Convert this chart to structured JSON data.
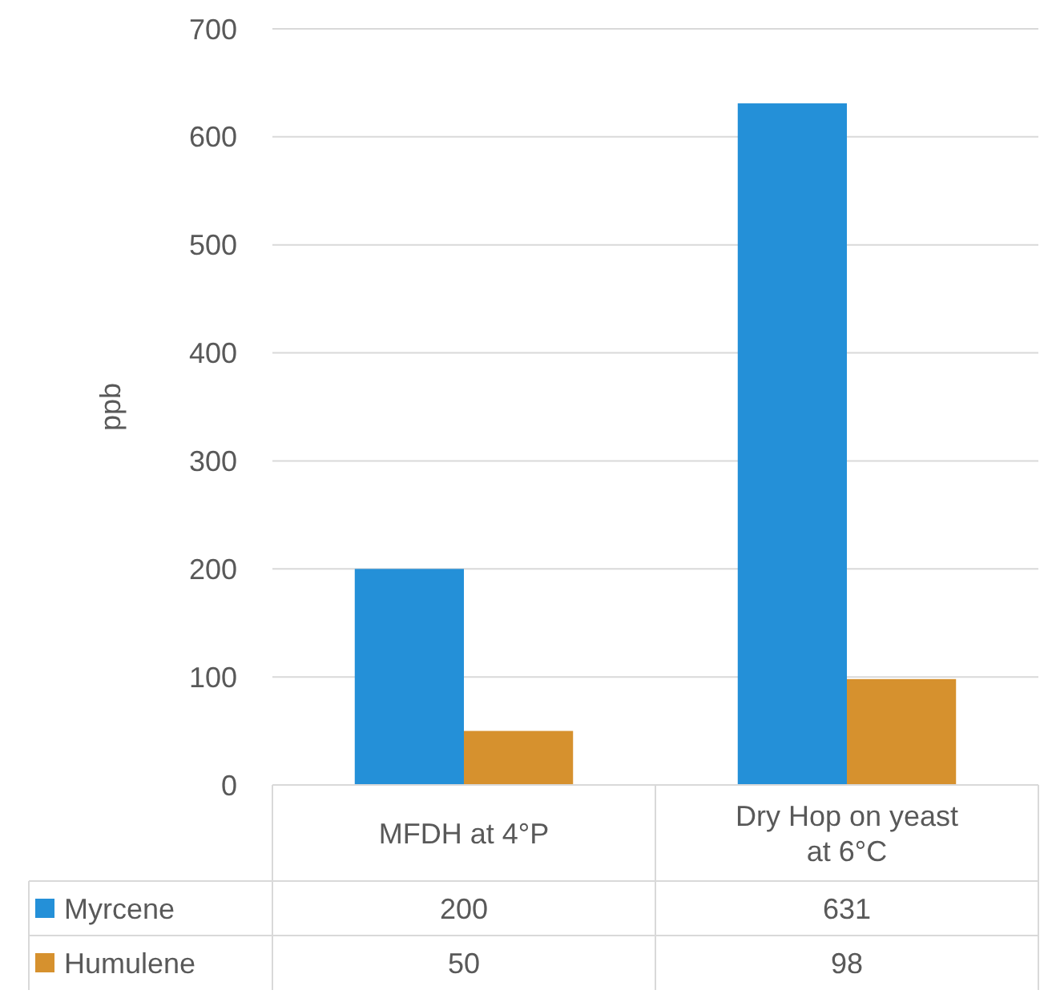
{
  "chart_data": {
    "type": "bar",
    "ylabel": "ppb",
    "categories": [
      "MFDH at 4°P",
      "Dry Hop on yeast at 6°C"
    ],
    "series": [
      {
        "name": "Myrcene",
        "color": "#2490d8",
        "values": [
          200,
          631
        ]
      },
      {
        "name": "Humulene",
        "color": "#d6912e",
        "values": [
          50,
          98
        ]
      }
    ],
    "ylim": [
      0,
      700
    ],
    "yticks": [
      0,
      100,
      200,
      300,
      400,
      500,
      600,
      700
    ],
    "grid": "y",
    "legend": "bottom",
    "data_labels": true
  }
}
